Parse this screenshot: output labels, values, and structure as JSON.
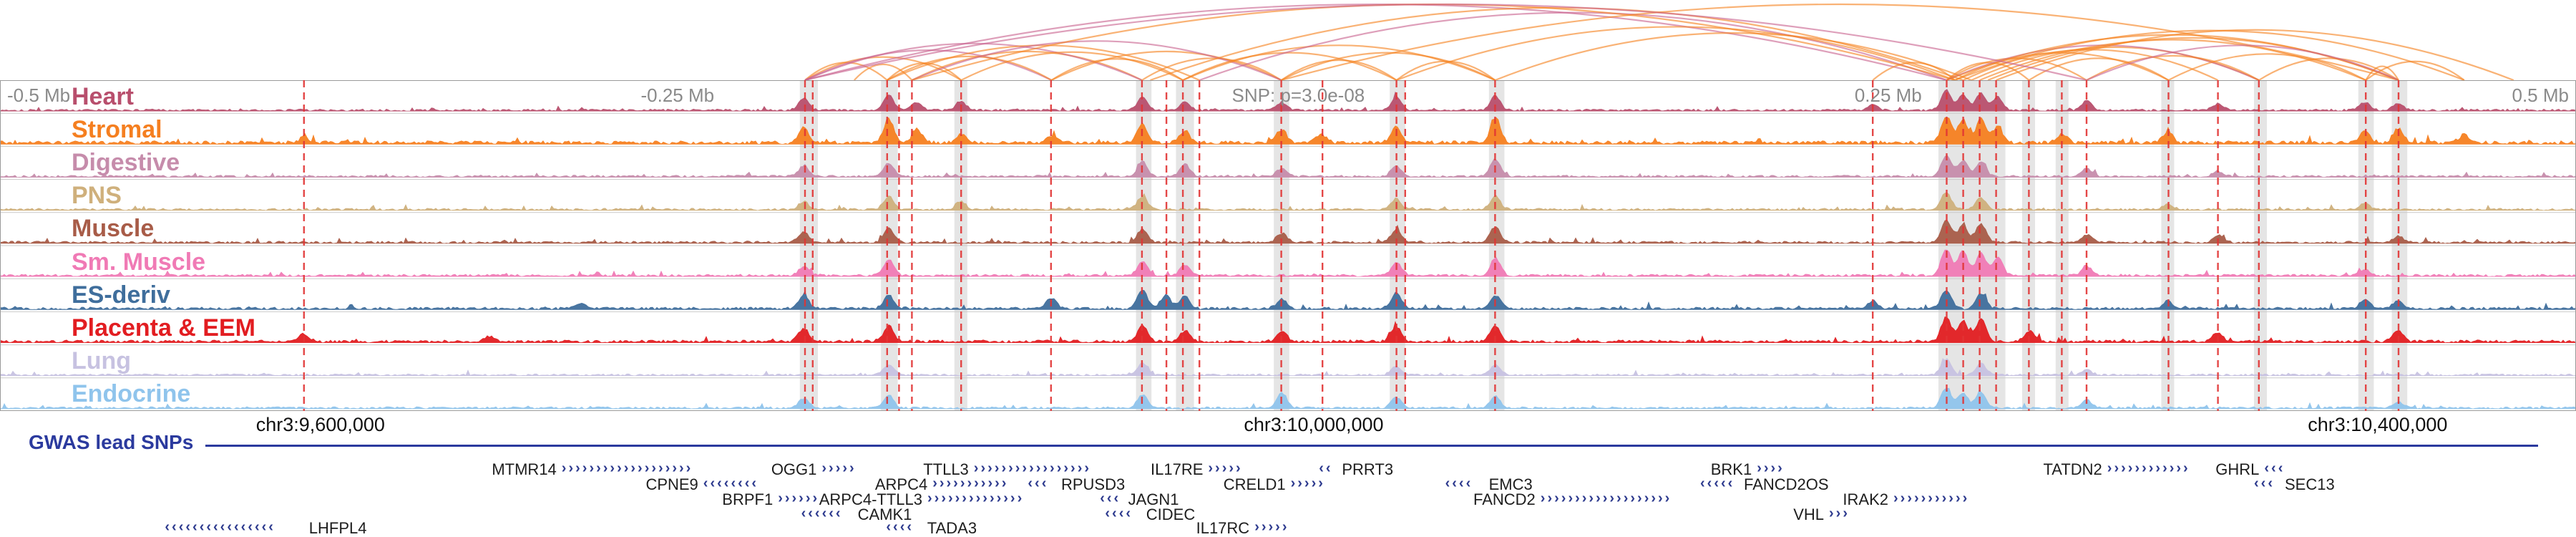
{
  "region": {
    "gwas_label": "GWAS lead SNPs",
    "scale_labels": [
      {
        "text": "-0.5 Mb",
        "x": 0.004,
        "align": "left"
      },
      {
        "text": "-0.25 Mb",
        "x": 0.263,
        "align": "center"
      },
      {
        "text": "SNP: p=3.0e-08",
        "x": 0.504,
        "align": "center"
      },
      {
        "text": "0.25 Mb",
        "x": 0.733,
        "align": "center"
      },
      {
        "text": "0.5 Mb",
        "x": 0.996,
        "align": "right"
      }
    ],
    "coordinate_labels": [
      {
        "text": "chr3:9,600,000",
        "x": 0.1244
      },
      {
        "text": "chr3:10,000,000",
        "x": 0.51
      },
      {
        "text": "chr3:10,400,000",
        "x": 0.923
      }
    ]
  },
  "chart_data": {
    "type": "genome-browser-tracks",
    "colors": {
      "snp_line": "#e23434",
      "highlight": "#8a8a8a",
      "gene": "#2d3a8e",
      "gwas": "#2b3a9e"
    },
    "arc_colors": [
      "#f58220",
      "#c9648f"
    ],
    "arcs": [
      [
        0.3125,
        0.3444,
        0
      ],
      [
        0.3125,
        0.3731,
        0
      ],
      [
        0.3316,
        0.354,
        0
      ],
      [
        0.3444,
        0.3731,
        0
      ],
      [
        0.3125,
        0.4082,
        1
      ],
      [
        0.3444,
        0.4082,
        0
      ],
      [
        0.354,
        0.4433,
        0
      ],
      [
        0.3125,
        0.4433,
        1
      ],
      [
        0.3731,
        0.4592,
        0
      ],
      [
        0.4082,
        0.4592,
        0
      ],
      [
        0.3444,
        0.4656,
        0
      ],
      [
        0.4433,
        0.4974,
        0
      ],
      [
        0.4082,
        0.4974,
        0
      ],
      [
        0.354,
        0.4974,
        1
      ],
      [
        0.4592,
        0.5421,
        0
      ],
      [
        0.4974,
        0.5421,
        0
      ],
      [
        0.4974,
        0.5804,
        0
      ],
      [
        0.4592,
        0.5804,
        0
      ],
      [
        0.5421,
        0.5804,
        0
      ],
      [
        0.3125,
        0.7557,
        1
      ],
      [
        0.4656,
        0.7557,
        1
      ],
      [
        0.354,
        0.7589,
        0
      ],
      [
        0.4465,
        0.7621,
        0
      ],
      [
        0.5421,
        0.7589,
        0
      ],
      [
        0.5804,
        0.7653,
        0
      ],
      [
        0.4974,
        0.9311,
        0
      ],
      [
        0.727,
        0.7589,
        0
      ],
      [
        0.7557,
        0.7876,
        0
      ],
      [
        0.7557,
        0.81,
        0
      ],
      [
        0.7589,
        0.8418,
        0
      ],
      [
        0.7621,
        0.861,
        0
      ],
      [
        0.7653,
        0.8769,
        0
      ],
      [
        0.7557,
        0.8769,
        1
      ],
      [
        0.7685,
        0.9184,
        0
      ],
      [
        0.7717,
        0.9311,
        0
      ],
      [
        0.7557,
        0.9311,
        0
      ],
      [
        0.7589,
        0.9566,
        0
      ],
      [
        0.7749,
        0.9758,
        0
      ],
      [
        0.7876,
        0.8418,
        0
      ],
      [
        0.81,
        0.8769,
        0
      ],
      [
        0.8418,
        0.9184,
        0
      ],
      [
        0.8769,
        0.9311,
        0
      ],
      [
        0.9184,
        0.9566,
        0
      ],
      [
        0.81,
        0.9311,
        1
      ],
      [
        0.3125,
        0.81,
        1
      ],
      [
        0.9184,
        0.9311,
        0
      ]
    ],
    "snp_lines": [
      0.118,
      0.3125,
      0.3155,
      0.3444,
      0.349,
      0.354,
      0.3731,
      0.408,
      0.4433,
      0.4528,
      0.4592,
      0.4656,
      0.4974,
      0.5134,
      0.5421,
      0.5455,
      0.5804,
      0.727,
      0.7557,
      0.7621,
      0.7685,
      0.7749,
      0.7876,
      0.8004,
      0.81,
      0.8418,
      0.861,
      0.8769,
      0.9184,
      0.9311
    ],
    "highlights": [
      {
        "x": 0.3105,
        "w": 0.007
      },
      {
        "x": 0.342,
        "w": 0.0065
      },
      {
        "x": 0.3705,
        "w": 0.005
      },
      {
        "x": 0.441,
        "w": 0.006
      },
      {
        "x": 0.4565,
        "w": 0.007
      },
      {
        "x": 0.4945,
        "w": 0.006
      },
      {
        "x": 0.5395,
        "w": 0.006
      },
      {
        "x": 0.578,
        "w": 0.006
      },
      {
        "x": 0.7525,
        "w": 0.026
      },
      {
        "x": 0.785,
        "w": 0.005
      },
      {
        "x": 0.798,
        "w": 0.005
      },
      {
        "x": 0.839,
        "w": 0.005
      },
      {
        "x": 0.875,
        "w": 0.005
      },
      {
        "x": 0.9155,
        "w": 0.006
      },
      {
        "x": 0.9285,
        "w": 0.006
      }
    ],
    "tracks": [
      {
        "name": "Heart",
        "color": "#b84f6d",
        "noise": 1.0,
        "peaks": [
          [
            0.312,
            0.45
          ],
          [
            0.345,
            0.6
          ],
          [
            0.356,
            0.3
          ],
          [
            0.373,
            0.35
          ],
          [
            0.4435,
            0.5
          ],
          [
            0.46,
            0.35
          ],
          [
            0.4975,
            0.3
          ],
          [
            0.542,
            0.5
          ],
          [
            0.5805,
            0.55
          ],
          [
            0.727,
            0.2
          ],
          [
            0.7555,
            0.75
          ],
          [
            0.762,
            0.6
          ],
          [
            0.769,
            0.65
          ],
          [
            0.7755,
            0.5
          ],
          [
            0.81,
            0.35
          ],
          [
            0.861,
            0.25
          ],
          [
            0.918,
            0.3
          ],
          [
            0.931,
            0.25
          ]
        ]
      },
      {
        "name": "Stromal",
        "color": "#f57f20",
        "noise": 1.6,
        "peaks": [
          [
            0.118,
            0.2
          ],
          [
            0.312,
            0.55
          ],
          [
            0.345,
            0.9
          ],
          [
            0.356,
            0.5
          ],
          [
            0.373,
            0.3
          ],
          [
            0.408,
            0.25
          ],
          [
            0.4435,
            0.7
          ],
          [
            0.46,
            0.45
          ],
          [
            0.4975,
            0.5
          ],
          [
            0.513,
            0.3
          ],
          [
            0.542,
            0.6
          ],
          [
            0.5805,
            0.95
          ],
          [
            0.7555,
            1.0
          ],
          [
            0.762,
            0.85
          ],
          [
            0.769,
            0.9
          ],
          [
            0.7755,
            0.6
          ],
          [
            0.8005,
            0.3
          ],
          [
            0.8415,
            0.4
          ],
          [
            0.918,
            0.45
          ],
          [
            0.931,
            0.55
          ],
          [
            0.9565,
            0.3
          ]
        ]
      },
      {
        "name": "Digestive",
        "color": "#c68cab",
        "noise": 1.0,
        "peaks": [
          [
            0.312,
            0.4
          ],
          [
            0.345,
            0.5
          ],
          [
            0.4435,
            0.55
          ],
          [
            0.46,
            0.45
          ],
          [
            0.4975,
            0.3
          ],
          [
            0.542,
            0.4
          ],
          [
            0.5805,
            0.65
          ],
          [
            0.7555,
            0.8
          ],
          [
            0.762,
            0.6
          ],
          [
            0.769,
            0.55
          ],
          [
            0.81,
            0.3
          ],
          [
            0.861,
            0.2
          ]
        ]
      },
      {
        "name": "PNS",
        "color": "#cfb07c",
        "noise": 1.0,
        "peaks": [
          [
            0.312,
            0.3
          ],
          [
            0.345,
            0.5
          ],
          [
            0.373,
            0.3
          ],
          [
            0.4435,
            0.5
          ],
          [
            0.542,
            0.4
          ],
          [
            0.5805,
            0.5
          ],
          [
            0.7555,
            0.65
          ],
          [
            0.769,
            0.45
          ],
          [
            0.8415,
            0.2
          ],
          [
            0.918,
            0.25
          ]
        ]
      },
      {
        "name": "Muscle",
        "color": "#a85c48",
        "noise": 1.1,
        "peaks": [
          [
            0.312,
            0.4
          ],
          [
            0.345,
            0.55
          ],
          [
            0.4435,
            0.5
          ],
          [
            0.4975,
            0.35
          ],
          [
            0.542,
            0.5
          ],
          [
            0.5805,
            0.6
          ],
          [
            0.7555,
            0.85
          ],
          [
            0.762,
            0.65
          ],
          [
            0.769,
            0.7
          ],
          [
            0.81,
            0.3
          ],
          [
            0.861,
            0.3
          ],
          [
            0.931,
            0.25
          ]
        ]
      },
      {
        "name": "Sm. Muscle",
        "color": "#f07ab5",
        "noise": 1.1,
        "peaks": [
          [
            0.312,
            0.35
          ],
          [
            0.345,
            0.6
          ],
          [
            0.4435,
            0.55
          ],
          [
            0.46,
            0.4
          ],
          [
            0.542,
            0.5
          ],
          [
            0.5805,
            0.65
          ],
          [
            0.7555,
            1.0
          ],
          [
            0.762,
            0.9
          ],
          [
            0.769,
            0.85
          ],
          [
            0.7755,
            0.7
          ],
          [
            0.81,
            0.35
          ],
          [
            0.918,
            0.25
          ]
        ]
      },
      {
        "name": "ES-deriv",
        "color": "#3f6e9c",
        "noise": 1.2,
        "peaks": [
          [
            0.225,
            0.2
          ],
          [
            0.312,
            0.5
          ],
          [
            0.345,
            0.5
          ],
          [
            0.408,
            0.4
          ],
          [
            0.4435,
            0.7
          ],
          [
            0.4525,
            0.5
          ],
          [
            0.46,
            0.45
          ],
          [
            0.4975,
            0.35
          ],
          [
            0.542,
            0.6
          ],
          [
            0.5805,
            0.5
          ],
          [
            0.727,
            0.3
          ],
          [
            0.7555,
            0.7
          ],
          [
            0.769,
            0.55
          ],
          [
            0.8415,
            0.3
          ],
          [
            0.918,
            0.35
          ],
          [
            0.931,
            0.3
          ]
        ]
      },
      {
        "name": "Placenta & EEM",
        "color": "#e21d21",
        "noise": 1.3,
        "peaks": [
          [
            0.118,
            0.3
          ],
          [
            0.19,
            0.2
          ],
          [
            0.312,
            0.5
          ],
          [
            0.345,
            0.6
          ],
          [
            0.4435,
            0.6
          ],
          [
            0.46,
            0.4
          ],
          [
            0.4975,
            0.4
          ],
          [
            0.542,
            0.55
          ],
          [
            0.5805,
            0.6
          ],
          [
            0.7555,
            0.9
          ],
          [
            0.762,
            0.8
          ],
          [
            0.769,
            0.85
          ],
          [
            0.788,
            0.4
          ],
          [
            0.861,
            0.35
          ],
          [
            0.931,
            0.4
          ]
        ]
      },
      {
        "name": "Lung",
        "color": "#c7c2e1",
        "noise": 0.9,
        "peaks": [
          [
            0.345,
            0.4
          ],
          [
            0.4435,
            0.45
          ],
          [
            0.542,
            0.35
          ],
          [
            0.5805,
            0.4
          ],
          [
            0.7555,
            0.6
          ],
          [
            0.769,
            0.45
          ],
          [
            0.81,
            0.2
          ]
        ]
      },
      {
        "name": "Endocrine",
        "color": "#8fc4ec",
        "noise": 1.0,
        "peaks": [
          [
            0.312,
            0.35
          ],
          [
            0.345,
            0.5
          ],
          [
            0.4435,
            0.5
          ],
          [
            0.4975,
            0.55
          ],
          [
            0.542,
            0.4
          ],
          [
            0.5805,
            0.45
          ],
          [
            0.7555,
            0.75
          ],
          [
            0.762,
            0.55
          ],
          [
            0.769,
            0.6
          ],
          [
            0.81,
            0.3
          ],
          [
            0.931,
            0.25
          ]
        ]
      }
    ],
    "genes": [
      {
        "n": "MTMR14",
        "r": 0,
        "x1": 0.218,
        "x2": 0.281,
        "d": "R",
        "s": "L"
      },
      {
        "n": "CPNE9",
        "r": 1,
        "x1": 0.273,
        "x2": 0.3,
        "d": "L",
        "s": "L"
      },
      {
        "n": "BRPF1",
        "r": 2,
        "x1": 0.302,
        "x2": 0.323,
        "d": "R",
        "s": "L"
      },
      {
        "n": "OGG1",
        "r": 0,
        "x1": 0.319,
        "x2": 0.337,
        "d": "R",
        "s": "L"
      },
      {
        "n": "ARPC4",
        "r": 1,
        "x1": 0.362,
        "x2": 0.398,
        "d": "R",
        "s": "L"
      },
      {
        "n": "ARPC4-TTLL3",
        "r": 2,
        "x1": 0.36,
        "x2": 0.405,
        "d": "R",
        "s": "L"
      },
      {
        "n": "CAMK1",
        "r": 3,
        "x1": 0.311,
        "x2": 0.331,
        "d": "L",
        "s": "R"
      },
      {
        "n": "TADA3",
        "r": 4,
        "x1": 0.344,
        "x2": 0.358,
        "d": "L",
        "s": "R"
      },
      {
        "n": "TTLL3",
        "r": 0,
        "x1": 0.378,
        "x2": 0.434,
        "d": "R",
        "s": "L"
      },
      {
        "n": "RPUSD3",
        "r": 1,
        "x1": 0.399,
        "x2": 0.41,
        "d": "L",
        "s": "R"
      },
      {
        "n": "JAGN1",
        "r": 2,
        "x1": 0.427,
        "x2": 0.436,
        "d": "L",
        "s": "R"
      },
      {
        "n": "CIDEC",
        "r": 3,
        "x1": 0.429,
        "x2": 0.443,
        "d": "L",
        "s": "R"
      },
      {
        "n": "IL17RC",
        "r": 4,
        "x1": 0.487,
        "x2": 0.504,
        "d": "R",
        "s": "L"
      },
      {
        "n": "IL17RE",
        "r": 0,
        "x1": 0.469,
        "x2": 0.484,
        "d": "R",
        "s": "L"
      },
      {
        "n": "CRELD1",
        "r": 1,
        "x1": 0.501,
        "x2": 0.517,
        "d": "R",
        "s": "L"
      },
      {
        "n": "PRRT3",
        "r": 0,
        "x1": 0.512,
        "x2": 0.519,
        "d": "L",
        "s": "R"
      },
      {
        "n": "EMC3",
        "r": 1,
        "x1": 0.561,
        "x2": 0.576,
        "d": "L",
        "s": "R"
      },
      {
        "n": "FANCD2",
        "r": 2,
        "x1": 0.598,
        "x2": 0.66,
        "d": "R",
        "s": "L"
      },
      {
        "n": "BRK1",
        "r": 0,
        "x1": 0.682,
        "x2": 0.695,
        "d": "R",
        "s": "L"
      },
      {
        "n": "FANCD2OS",
        "r": 1,
        "x1": 0.66,
        "x2": 0.675,
        "d": "L",
        "s": "R"
      },
      {
        "n": "IRAK2",
        "r": 2,
        "x1": 0.735,
        "x2": 0.77,
        "d": "R",
        "s": "L"
      },
      {
        "n": "VHL",
        "r": 3,
        "x1": 0.71,
        "x2": 0.721,
        "d": "R",
        "s": "L"
      },
      {
        "n": "TATDN2",
        "r": 0,
        "x1": 0.818,
        "x2": 0.858,
        "d": "R",
        "s": "L"
      },
      {
        "n": "GHRL",
        "r": 0,
        "x1": 0.879,
        "x2": 0.89,
        "d": "L",
        "s": "L"
      },
      {
        "n": "SEC13",
        "r": 1,
        "x1": 0.875,
        "x2": 0.885,
        "d": "L",
        "s": "R"
      },
      {
        "n": "LHFPL4",
        "r": 4,
        "x1": 0.064,
        "x2": 0.118,
        "d": "L",
        "s": "R"
      }
    ]
  }
}
